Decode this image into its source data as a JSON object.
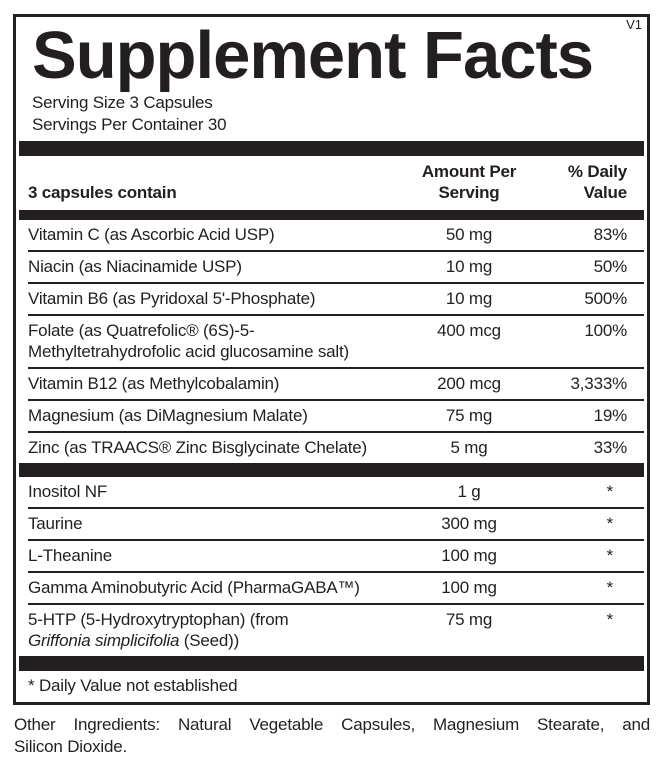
{
  "version": "V1",
  "title": "Supplement Facts",
  "serving_size": "Serving Size 3 Capsules",
  "servings_per_container": "Servings Per Container 30",
  "header": {
    "contain": "3 capsules contain",
    "amount": [
      "Amount Per",
      "Serving"
    ],
    "daily_value": [
      "% Daily",
      "Value"
    ]
  },
  "section1": [
    {
      "name": "Vitamin C (as Ascorbic Acid USP)",
      "amount": "50 mg",
      "dv": "83%"
    },
    {
      "name": "Niacin (as Niacinamide USP)",
      "amount": "10 mg",
      "dv": "50%"
    },
    {
      "name": "Vitamin B6 (as Pyridoxal 5'-Phosphate)",
      "amount": "10 mg",
      "dv": "500%"
    },
    {
      "name": "Folate (as Quatrefolic® (6S)-5-Methyltetrahydrofolic acid glucosamine salt)",
      "name_lines": [
        "Folate (as Quatrefolic® (6S)-5-",
        "Methyltetrahydrofolic acid glucosamine salt)"
      ],
      "amount": "400 mcg",
      "dv": "100%"
    },
    {
      "name": "Vitamin B12 (as Methylcobalamin)",
      "amount": "200 mcg",
      "dv": "3,333%"
    },
    {
      "name": "Magnesium (as DiMagnesium Malate)",
      "amount": "75 mg",
      "dv": "19%"
    },
    {
      "name": "Zinc (as TRAACS® Zinc Bisglycinate Chelate)",
      "amount": "5 mg",
      "dv": "33%"
    }
  ],
  "section2": [
    {
      "name": "Inositol NF",
      "amount": "1 g",
      "dv": "*"
    },
    {
      "name": "Taurine",
      "amount": "300 mg",
      "dv": "*"
    },
    {
      "name": "L-Theanine",
      "amount": "100 mg",
      "dv": "*"
    },
    {
      "name": "Gamma Aminobutyric Acid (PharmaGABA™)",
      "amount": "100 mg",
      "dv": "*"
    },
    {
      "name": "5-HTP (5-Hydroxytryptophan) (from Griffonia simplicifolia (Seed))",
      "name_line1": "5-HTP (5-Hydroxytryptophan) (from",
      "name_italic": "Griffonia simplicifolia",
      "name_line2_rest": " (Seed))",
      "amount": "75 mg",
      "dv": "*"
    }
  ],
  "footnote": "* Daily Value not established",
  "other_ingredients_lines": [
    "Other Ingredients: Natural Vegetable Capsules, Magnesium Stearate, and",
    "Silicon Dioxide."
  ]
}
